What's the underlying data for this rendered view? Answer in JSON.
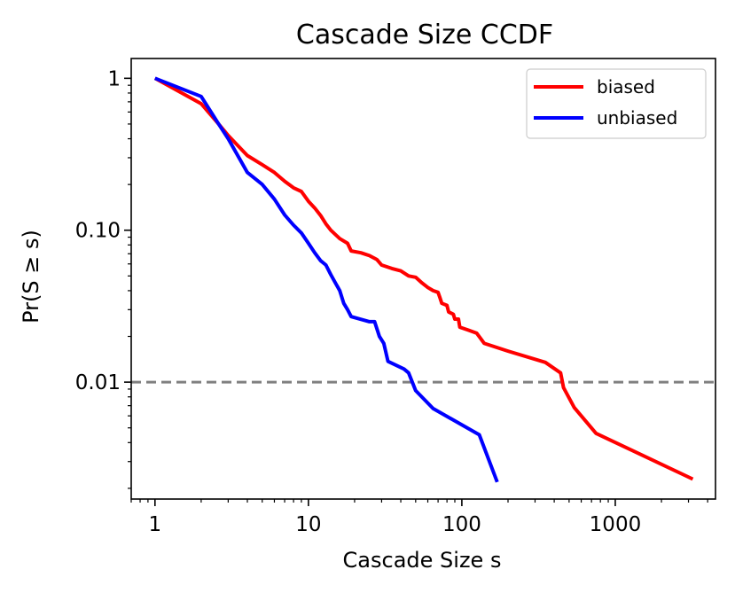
{
  "chart_data": {
    "type": "line",
    "title": "Cascade Size CCDF",
    "xlabel": "Cascade Size s",
    "ylabel": "Pr(S ≥ s)",
    "xscale": "log",
    "yscale": "log",
    "xlim": [
      0.7,
      4500
    ],
    "ylim": [
      0.0017,
      1.35
    ],
    "x_ticks": [
      {
        "value": 1,
        "label": "1"
      },
      {
        "value": 10,
        "label": "10"
      },
      {
        "value": 100,
        "label": "100"
      },
      {
        "value": 1000,
        "label": "1000"
      }
    ],
    "y_ticks": [
      {
        "value": 1,
        "label": "1"
      },
      {
        "value": 0.1,
        "label": "0.10"
      },
      {
        "value": 0.01,
        "label": "0.01"
      }
    ],
    "reference_line": {
      "y": 0.01,
      "style": "dashed",
      "color": "#808080"
    },
    "legend_position": "top-right",
    "series": [
      {
        "name": "biased",
        "color": "#ff0000",
        "points": [
          [
            1,
            1.0
          ],
          [
            2,
            0.68
          ],
          [
            2.6,
            0.5
          ],
          [
            3,
            0.42
          ],
          [
            4,
            0.31
          ],
          [
            5,
            0.27
          ],
          [
            6,
            0.24
          ],
          [
            7,
            0.21
          ],
          [
            8,
            0.19
          ],
          [
            9,
            0.18
          ],
          [
            10,
            0.155
          ],
          [
            11,
            0.14
          ],
          [
            12,
            0.125
          ],
          [
            13,
            0.11
          ],
          [
            14,
            0.1
          ],
          [
            16,
            0.088
          ],
          [
            18,
            0.082
          ],
          [
            19,
            0.073
          ],
          [
            22,
            0.071
          ],
          [
            25,
            0.068
          ],
          [
            28,
            0.064
          ],
          [
            30,
            0.059
          ],
          [
            35,
            0.056
          ],
          [
            40,
            0.054
          ],
          [
            45,
            0.05
          ],
          [
            50,
            0.049
          ],
          [
            55,
            0.045
          ],
          [
            60,
            0.042
          ],
          [
            65,
            0.04
          ],
          [
            70,
            0.039
          ],
          [
            72,
            0.036
          ],
          [
            74,
            0.033
          ],
          [
            80,
            0.032
          ],
          [
            82,
            0.029
          ],
          [
            88,
            0.028
          ],
          [
            90,
            0.026
          ],
          [
            95,
            0.026
          ],
          [
            97,
            0.023
          ],
          [
            110,
            0.022
          ],
          [
            125,
            0.021
          ],
          [
            140,
            0.018
          ],
          [
            200,
            0.016
          ],
          [
            350,
            0.0135
          ],
          [
            440,
            0.0115
          ],
          [
            460,
            0.0092
          ],
          [
            540,
            0.0068
          ],
          [
            750,
            0.0046
          ],
          [
            3200,
            0.0023
          ]
        ]
      },
      {
        "name": "unbiased",
        "color": "#0000ff",
        "points": [
          [
            1,
            1.0
          ],
          [
            2,
            0.76
          ],
          [
            2.6,
            0.5
          ],
          [
            3,
            0.4
          ],
          [
            4,
            0.24
          ],
          [
            5,
            0.2
          ],
          [
            6,
            0.16
          ],
          [
            7,
            0.126
          ],
          [
            8,
            0.108
          ],
          [
            9,
            0.096
          ],
          [
            10,
            0.082
          ],
          [
            11,
            0.071
          ],
          [
            12,
            0.063
          ],
          [
            13,
            0.059
          ],
          [
            14,
            0.051
          ],
          [
            15,
            0.045
          ],
          [
            16,
            0.04
          ],
          [
            17,
            0.033
          ],
          [
            18,
            0.03
          ],
          [
            19,
            0.027
          ],
          [
            25,
            0.025
          ],
          [
            27,
            0.025
          ],
          [
            29,
            0.02
          ],
          [
            31,
            0.018
          ],
          [
            33,
            0.0137
          ],
          [
            42,
            0.0122
          ],
          [
            45,
            0.0115
          ],
          [
            50,
            0.0088
          ],
          [
            65,
            0.0067
          ],
          [
            130,
            0.0045
          ],
          [
            170,
            0.0022
          ]
        ]
      }
    ]
  }
}
